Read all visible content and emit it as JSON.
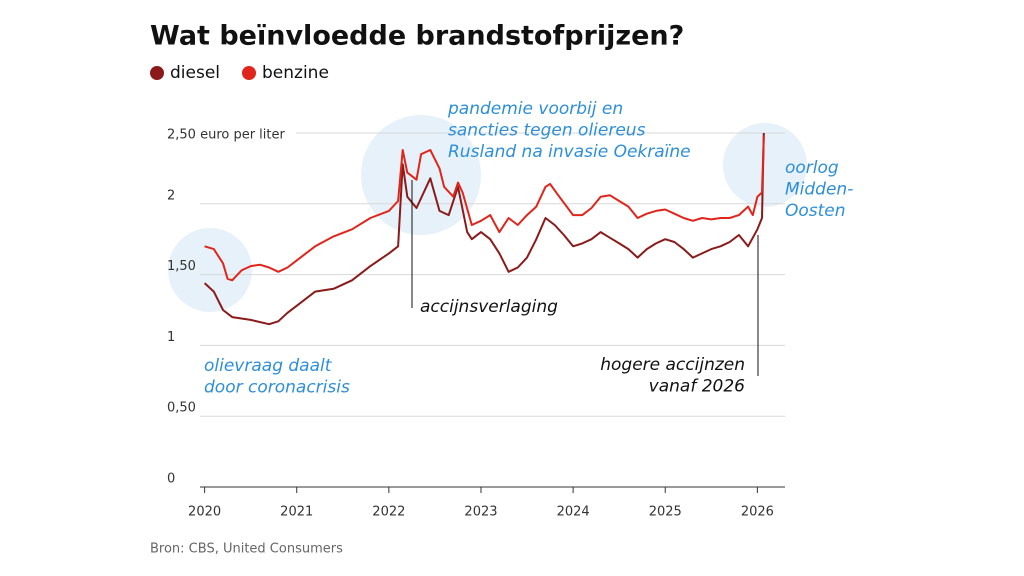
{
  "chart_data": {
    "type": "line",
    "title": "Wat beïnvloedde brandstofprijzen?",
    "source": "Bron: CBS, United Consumers",
    "xlim": [
      2019.95,
      2026.3
    ],
    "xticks": [
      2020,
      2021,
      2022,
      2023,
      2024,
      2025,
      2026
    ],
    "ylim": [
      0,
      2.5
    ],
    "yticks": [
      {
        "value": 0,
        "label": "0"
      },
      {
        "value": 0.5,
        "label": "0,50"
      },
      {
        "value": 1,
        "label": "1"
      },
      {
        "value": 1.5,
        "label": "1,50"
      },
      {
        "value": 2,
        "label": "2"
      },
      {
        "value": 2.5,
        "label": "2,50 euro per liter"
      }
    ],
    "grid": true,
    "legend": "top-left",
    "series": [
      {
        "name": "diesel",
        "color": "#8b1a1a",
        "x": [
          2020.0,
          2020.1,
          2020.2,
          2020.3,
          2020.5,
          2020.7,
          2020.8,
          2020.9,
          2021.0,
          2021.2,
          2021.4,
          2021.6,
          2021.8,
          2022.0,
          2022.1,
          2022.15,
          2022.2,
          2022.3,
          2022.45,
          2022.55,
          2022.65,
          2022.75,
          2022.85,
          2022.9,
          2023.0,
          2023.1,
          2023.2,
          2023.3,
          2023.4,
          2023.5,
          2023.6,
          2023.7,
          2023.8,
          2023.9,
          2024.0,
          2024.1,
          2024.2,
          2024.3,
          2024.4,
          2024.5,
          2024.6,
          2024.7,
          2024.8,
          2024.9,
          2025.0,
          2025.1,
          2025.2,
          2025.3,
          2025.4,
          2025.5,
          2025.6,
          2025.7,
          2025.8,
          2025.9,
          2026.0,
          2026.05,
          2026.07
        ],
        "values": [
          1.44,
          1.38,
          1.25,
          1.2,
          1.18,
          1.15,
          1.17,
          1.23,
          1.28,
          1.38,
          1.4,
          1.46,
          1.56,
          1.65,
          1.7,
          2.28,
          2.05,
          1.97,
          2.18,
          1.95,
          1.92,
          2.12,
          1.8,
          1.75,
          1.8,
          1.75,
          1.65,
          1.52,
          1.55,
          1.62,
          1.75,
          1.9,
          1.85,
          1.78,
          1.7,
          1.72,
          1.75,
          1.8,
          1.76,
          1.72,
          1.68,
          1.62,
          1.68,
          1.72,
          1.75,
          1.73,
          1.68,
          1.62,
          1.65,
          1.68,
          1.7,
          1.73,
          1.78,
          1.7,
          1.82,
          1.9,
          2.5
        ]
      },
      {
        "name": "benzine",
        "color": "#e0251b",
        "x": [
          2020.0,
          2020.1,
          2020.2,
          2020.25,
          2020.3,
          2020.4,
          2020.5,
          2020.6,
          2020.7,
          2020.8,
          2020.9,
          2021.0,
          2021.2,
          2021.4,
          2021.6,
          2021.8,
          2022.0,
          2022.1,
          2022.15,
          2022.2,
          2022.3,
          2022.35,
          2022.45,
          2022.55,
          2022.6,
          2022.7,
          2022.75,
          2022.8,
          2022.9,
          2023.0,
          2023.1,
          2023.2,
          2023.3,
          2023.4,
          2023.5,
          2023.6,
          2023.7,
          2023.75,
          2023.85,
          2024.0,
          2024.1,
          2024.2,
          2024.3,
          2024.4,
          2024.5,
          2024.6,
          2024.7,
          2024.8,
          2024.9,
          2025.0,
          2025.1,
          2025.2,
          2025.3,
          2025.4,
          2025.5,
          2025.6,
          2025.7,
          2025.8,
          2025.9,
          2025.95,
          2026.0,
          2026.05,
          2026.07
        ],
        "values": [
          1.7,
          1.68,
          1.58,
          1.47,
          1.46,
          1.53,
          1.56,
          1.57,
          1.55,
          1.52,
          1.55,
          1.6,
          1.7,
          1.77,
          1.82,
          1.9,
          1.95,
          2.02,
          2.38,
          2.22,
          2.17,
          2.35,
          2.38,
          2.25,
          2.12,
          2.05,
          2.15,
          2.08,
          1.85,
          1.88,
          1.92,
          1.8,
          1.9,
          1.85,
          1.92,
          1.98,
          2.12,
          2.14,
          2.05,
          1.92,
          1.92,
          1.97,
          2.05,
          2.06,
          2.02,
          1.98,
          1.9,
          1.93,
          1.95,
          1.96,
          1.93,
          1.9,
          1.88,
          1.9,
          1.89,
          1.9,
          1.9,
          1.92,
          1.98,
          1.92,
          2.05,
          2.08,
          2.48
        ]
      }
    ],
    "annotations": [
      {
        "lines": [
          "olievraag daalt",
          "door coronacrisis"
        ],
        "color": "#2e8fd8"
      },
      {
        "lines": [
          "pandemie voorbij en",
          "sancties tegen oliereus",
          "Rusland na invasie Oekraïne"
        ],
        "color": "#2e8fd8"
      },
      {
        "lines": [
          "oorlog",
          "Midden-",
          "Oosten"
        ],
        "color": "#2e8fd8"
      },
      {
        "lines": [
          "accijnsverlaging"
        ],
        "color": "#111111"
      },
      {
        "lines": [
          "hogere accijnzen",
          "vanaf 2026"
        ],
        "color": "#111111"
      }
    ]
  }
}
